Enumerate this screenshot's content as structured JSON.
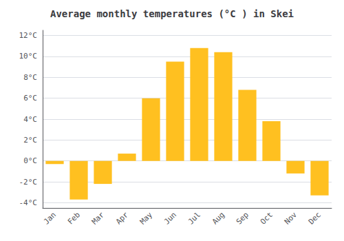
{
  "chart_data": {
    "type": "bar",
    "title": "Average monthly temperatures (°C ) in Skei",
    "categories": [
      "Jan",
      "Feb",
      "Mar",
      "Apr",
      "May",
      "Jun",
      "Jul",
      "Aug",
      "Sep",
      "Oct",
      "Nov",
      "Dec"
    ],
    "values": [
      -0.3,
      -3.7,
      -2.2,
      0.7,
      6.0,
      9.5,
      10.8,
      10.4,
      6.8,
      3.8,
      -1.2,
      -3.3
    ],
    "color": "#FFC020",
    "ylim": [
      -4.5,
      12.5
    ],
    "yticks": [
      {
        "value": -4,
        "label": "-4°C"
      },
      {
        "value": -2,
        "label": "-2°C"
      },
      {
        "value": 0,
        "label": "0°C"
      },
      {
        "value": 2,
        "label": "2°C"
      },
      {
        "value": 4,
        "label": "4°C"
      },
      {
        "value": 6,
        "label": "6°C"
      },
      {
        "value": 8,
        "label": "8°C"
      },
      {
        "value": 10,
        "label": "10°C"
      },
      {
        "value": 12,
        "label": "12°C"
      }
    ],
    "grid": true
  }
}
